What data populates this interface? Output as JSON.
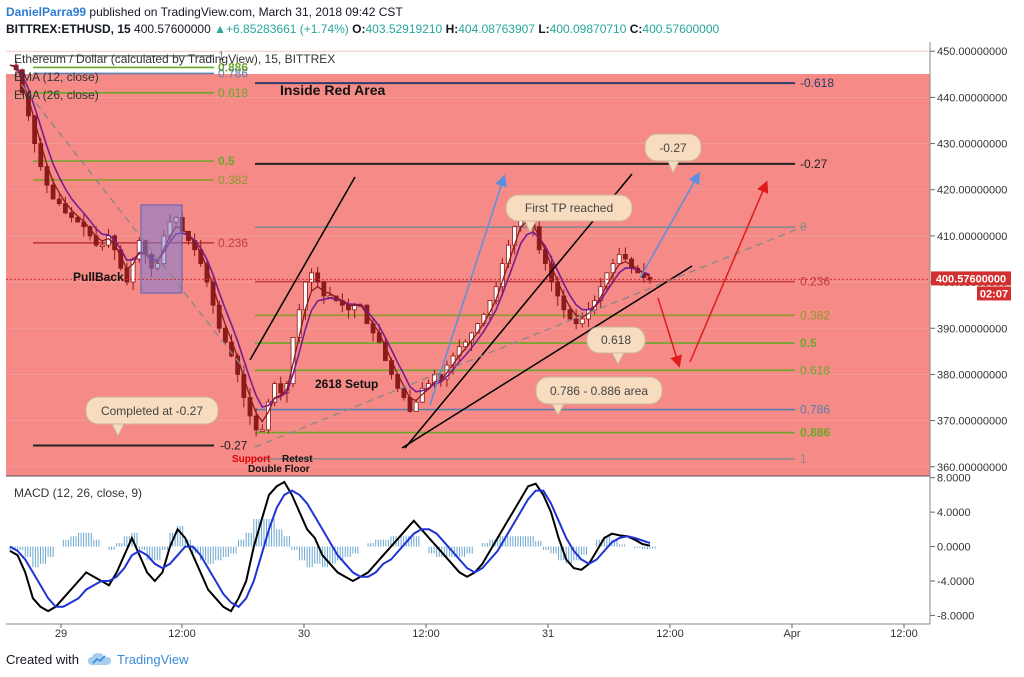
{
  "header": {
    "author": "DanielParra99",
    "published_text": "published on TradingView.com, March 31, 2018 09:42 CST",
    "symbol": "BITTREX:ETHUSD, 15",
    "last": "400.57600000",
    "change": "+6.85283661 (+1.74%)",
    "o_label": "O:",
    "o_value": "403.52919210",
    "h_label": "H:",
    "h_value": "404.08763907",
    "l_label": "L:",
    "l_value": "400.09870710",
    "c_label": "C:",
    "c_value": "400.57600000"
  },
  "chart_data": [
    {
      "type": "line",
      "name": "price-pane",
      "title": "Ethereum / Dollar (calculated by TradingView), 15, BITTREX",
      "indicators": [
        "EMA (12, close)",
        "EMA (26, close)"
      ],
      "ylim": [
        358,
        452
      ],
      "y_ticks": [
        "450.00000000",
        "440.00000000",
        "430.00000000",
        "420.00000000",
        "410.00000000",
        "400.00000000",
        "390.00000000",
        "380.00000000",
        "370.00000000",
        "360.00000000"
      ],
      "y_tick_values": [
        450,
        440,
        430,
        420,
        410,
        400,
        390,
        380,
        370,
        360
      ],
      "x_ticks": [
        "29",
        "12:00",
        "30",
        "12:00",
        "31",
        "12:00",
        "Apr",
        "12:00"
      ],
      "current_price_label": "400.57600000",
      "countdown_label": "02:07",
      "current_price": 400.576,
      "close_series": [
        447,
        446,
        441,
        436,
        430,
        425,
        421,
        418,
        417,
        415,
        414,
        413,
        412,
        410,
        408,
        408,
        410,
        407,
        403,
        400,
        405,
        409,
        406,
        403,
        404,
        410,
        413,
        414,
        411,
        409,
        407,
        404,
        400,
        395,
        390,
        387,
        384,
        380,
        375,
        371,
        368,
        368,
        374,
        378,
        376,
        378,
        388,
        394,
        400,
        402,
        400,
        397,
        397,
        396,
        395,
        394,
        395,
        395,
        391,
        389,
        387,
        383,
        380,
        377,
        375,
        372,
        374,
        377,
        378,
        380,
        379,
        382,
        384,
        386,
        387,
        389,
        391,
        393,
        396,
        399,
        404,
        408,
        412,
        416,
        414,
        412,
        407,
        404,
        400,
        397,
        394,
        392,
        391,
        392,
        394,
        396,
        399,
        402,
        404,
        406,
        405,
        403,
        402,
        401,
        400.5
      ]
    },
    {
      "type": "line",
      "name": "macd-pane",
      "title": "MACD (12, 26, close, 9)",
      "ylim": [
        -9,
        8.2
      ],
      "y_ticks": [
        "8.0000",
        "4.0000",
        "0.0000",
        "-4.0000",
        "-8.0000"
      ],
      "y_tick_values": [
        8,
        4,
        0,
        -4,
        -8
      ],
      "macd_series": [
        -0.5,
        -1,
        -3,
        -6,
        -7,
        -7.5,
        -7,
        -6,
        -5,
        -4,
        -3,
        -3.5,
        -4,
        -4.5,
        -3,
        -1,
        1,
        -1,
        -3,
        -4,
        -3,
        0,
        2,
        1,
        -1,
        -3,
        -5,
        -6,
        -7,
        -7.5,
        -6,
        -4,
        0,
        3,
        6,
        7,
        7.5,
        6,
        4,
        2,
        1,
        -1,
        -2,
        -3,
        -3.5,
        -4,
        -3.5,
        -3,
        -2,
        -1,
        0,
        1,
        2,
        3,
        2,
        1,
        0,
        -1,
        -2,
        -3,
        -3.5,
        -3,
        -2,
        -0.5,
        1,
        2.5,
        4,
        5.5,
        7,
        7.3,
        6,
        4,
        1,
        -1.5,
        -2.5,
        -2.7,
        -2,
        -0.5,
        1,
        1.5,
        1.3,
        1.2,
        0.8,
        0.3,
        0.1
      ],
      "signal_series": [
        0,
        -0.5,
        -1.5,
        -3,
        -4.5,
        -6,
        -7,
        -7,
        -6.5,
        -6,
        -5,
        -4.5,
        -4,
        -4,
        -3.5,
        -2.5,
        -1,
        -0.5,
        -1,
        -2,
        -2.5,
        -2,
        -1,
        0,
        0,
        -1,
        -2.5,
        -4,
        -5.5,
        -6.5,
        -7,
        -6,
        -4,
        -1,
        2,
        4.5,
        6,
        6.5,
        6,
        5,
        3.5,
        2,
        0.5,
        -1,
        -2,
        -3,
        -3.5,
        -3.5,
        -3,
        -2,
        -1.5,
        -0.5,
        0.5,
        1.5,
        2,
        2,
        1.5,
        0.5,
        -0.5,
        -1.5,
        -2.5,
        -3,
        -2.5,
        -1.5,
        -0.5,
        1,
        2.5,
        4,
        5.5,
        6.5,
        6.5,
        5,
        3,
        1,
        -0.5,
        -1.5,
        -2,
        -1.5,
        -0.5,
        0.5,
        1,
        1.2,
        1,
        0.7,
        0.4
      ]
    }
  ],
  "fib_left": {
    "levels": [
      {
        "label": "1",
        "price": 449,
        "color": "#8a8a8a"
      },
      {
        "label": "0.886",
        "price": 446.5,
        "color": "#6aa82b"
      },
      {
        "label": "0.786",
        "price": 445.2,
        "color": "#5b7fb0"
      },
      {
        "label": "0.618",
        "price": 441,
        "color": "#6aa82b"
      },
      {
        "label": "0.5",
        "price": 426.2,
        "color": "#6aa82b"
      },
      {
        "label": "0.382",
        "price": 422.1,
        "color": "#8e9b28"
      },
      {
        "label": "0.236",
        "price": 408.5,
        "color": "#c23b3b"
      },
      {
        "label": "-0.27",
        "price": 364.6,
        "color": "#222222"
      }
    ]
  },
  "fib_right": {
    "levels": [
      {
        "label": "-0.618",
        "price": 443.1,
        "color": "#2a3b6a"
      },
      {
        "label": "-0.27",
        "price": 425.6,
        "color": "#222222"
      },
      {
        "label": "0",
        "price": 411.9,
        "color": "#8a8a8a"
      },
      {
        "label": "0.236",
        "price": 400.1,
        "color": "#c23b3b"
      },
      {
        "label": "0.382",
        "price": 392.8,
        "color": "#8e9b28"
      },
      {
        "label": "0.5",
        "price": 386.8,
        "color": "#6aa82b"
      },
      {
        "label": "0.618",
        "price": 380.9,
        "color": "#6aa82b"
      },
      {
        "label": "0.786",
        "price": 372.4,
        "color": "#5b7fb0"
      },
      {
        "label": "0.886",
        "price": 367.4,
        "color": "#6aa82b"
      },
      {
        "label": "1",
        "price": 361.7,
        "color": "#8a8a8a"
      }
    ]
  },
  "annotations": {
    "inside_red_area": "Inside Red Area",
    "pullback": "PullBack",
    "completed": "Completed at -0.27",
    "setup": "2618 Setup",
    "support": "Support",
    "retest": "Retest",
    "double_floor": "Double Floor",
    "first_tp": "First TP reached",
    "callout_027": "-0.27",
    "callout_0618": "0.618",
    "callout_area": "0.786 - 0.886 area"
  },
  "colors": {
    "red_zone": "#f58a87",
    "candle": "#8b1a1a",
    "ema_fast": "#8b1a1a",
    "ema_slow": "#7a1d8f",
    "macd": "#000000",
    "signal": "#1f33d6",
    "histogram": "#6aa7d0",
    "price_tag": "#d32f2f",
    "bubble": "#f7dcc0"
  },
  "footer": {
    "created_with": "Created with",
    "brand": "TradingView"
  }
}
